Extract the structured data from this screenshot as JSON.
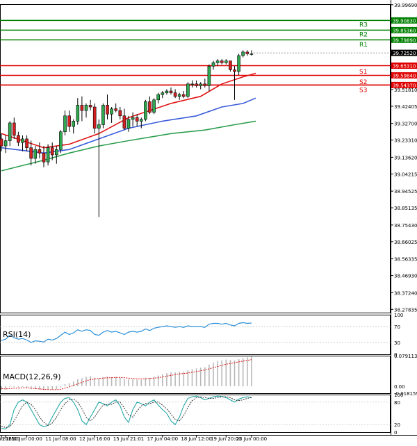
{
  "chart_data": {
    "type": "candlestick",
    "main": {
      "ylim": [
        38.26,
        40.0
      ],
      "price_ticks": [
        "39.99690",
        "39.90830",
        "39.85360",
        "39.79890",
        "39.72520",
        "39.65310",
        "39.59840",
        "39.54370",
        "39.51810",
        "39.42405",
        "39.32700",
        "39.23310",
        "39.13620",
        "39.04215",
        "38.94525",
        "38.85135",
        "38.75430",
        "38.66025",
        "38.56335",
        "38.46930",
        "38.37240",
        "38.27835"
      ],
      "levels": [
        {
          "name": "R3",
          "value": 39.9083,
          "color": "#008000"
        },
        {
          "name": "R2",
          "value": 39.8536,
          "color": "#008000"
        },
        {
          "name": "R1",
          "value": 39.7989,
          "color": "#008000"
        },
        {
          "name": "",
          "value": 39.6531,
          "color": "#e00000"
        },
        {
          "name": "S1",
          "value": 39.5984,
          "color": "#e00000"
        },
        {
          "name": "S2",
          "value": 39.5437,
          "color": "#e00000"
        },
        {
          "name": "S3",
          "value": 39.5437,
          "color": "#e00000"
        }
      ],
      "current_price": "39.72520",
      "candles": [
        [
          39.24,
          39.27,
          39.17,
          39.2
        ],
        [
          39.2,
          39.26,
          39.16,
          39.23
        ],
        [
          39.23,
          39.34,
          39.2,
          39.33
        ],
        [
          39.33,
          39.36,
          39.24,
          39.26
        ],
        [
          39.26,
          39.28,
          39.2,
          39.22
        ],
        [
          39.22,
          39.26,
          39.17,
          39.24
        ],
        [
          39.24,
          39.26,
          39.17,
          39.19
        ],
        [
          39.19,
          39.23,
          39.09,
          39.13
        ],
        [
          39.13,
          39.2,
          39.1,
          39.18
        ],
        [
          39.18,
          39.22,
          39.13,
          39.16
        ],
        [
          39.16,
          39.2,
          39.08,
          39.11
        ],
        [
          39.11,
          39.21,
          39.09,
          39.19
        ],
        [
          39.19,
          39.22,
          39.12,
          39.15
        ],
        [
          39.15,
          39.2,
          39.1,
          39.18
        ],
        [
          39.18,
          39.29,
          39.16,
          39.28
        ],
        [
          39.28,
          39.4,
          39.26,
          39.37
        ],
        [
          39.37,
          39.4,
          39.28,
          39.31
        ],
        [
          39.31,
          39.35,
          39.27,
          39.34
        ],
        [
          39.34,
          39.47,
          39.32,
          39.43
        ],
        [
          39.43,
          39.48,
          39.34,
          39.4
        ],
        [
          39.4,
          39.44,
          39.36,
          39.43
        ],
        [
          39.43,
          39.46,
          39.4,
          39.42
        ],
        [
          39.42,
          39.44,
          39.27,
          39.3
        ],
        [
          39.3,
          39.35,
          38.8,
          39.32
        ],
        [
          39.32,
          39.44,
          39.3,
          39.43
        ],
        [
          39.43,
          39.49,
          39.35,
          39.38
        ],
        [
          39.38,
          39.42,
          39.33,
          39.41
        ],
        [
          39.41,
          39.44,
          39.39,
          39.4
        ],
        [
          39.4,
          39.42,
          39.35,
          39.37
        ],
        [
          39.37,
          39.41,
          39.29,
          39.3
        ],
        [
          39.3,
          39.37,
          39.28,
          39.35
        ],
        [
          39.35,
          39.39,
          39.31,
          39.36
        ],
        [
          39.36,
          39.38,
          39.31,
          39.34
        ],
        [
          39.34,
          39.36,
          39.3,
          39.35
        ],
        [
          39.35,
          39.46,
          39.34,
          39.45
        ],
        [
          39.45,
          39.48,
          39.38,
          39.39
        ],
        [
          39.39,
          39.47,
          39.38,
          39.46
        ],
        [
          39.46,
          39.5,
          39.44,
          39.49
        ],
        [
          39.49,
          39.51,
          39.47,
          39.5
        ],
        [
          39.5,
          39.52,
          39.49,
          39.51
        ],
        [
          39.51,
          39.53,
          39.49,
          39.5
        ],
        [
          39.5,
          39.52,
          39.47,
          39.48
        ],
        [
          39.48,
          39.5,
          39.46,
          39.49
        ],
        [
          39.49,
          39.51,
          39.47,
          39.48
        ],
        [
          39.48,
          39.56,
          39.47,
          39.55
        ],
        [
          39.55,
          39.57,
          39.53,
          39.55
        ],
        [
          39.55,
          39.57,
          39.53,
          39.54
        ],
        [
          39.54,
          39.56,
          39.52,
          39.55
        ],
        [
          39.55,
          39.58,
          39.53,
          39.54
        ],
        [
          39.54,
          39.66,
          39.51,
          39.65
        ],
        [
          39.65,
          39.68,
          39.63,
          39.67
        ],
        [
          39.67,
          39.69,
          39.65,
          39.68
        ],
        [
          39.68,
          39.69,
          39.66,
          39.67
        ],
        [
          39.67,
          39.69,
          39.66,
          39.68
        ],
        [
          39.68,
          39.68,
          39.62,
          39.63
        ],
        [
          39.63,
          39.65,
          39.46,
          39.62
        ],
        [
          39.62,
          39.72,
          39.6,
          39.71
        ],
        [
          39.71,
          39.74,
          39.7,
          39.73
        ],
        [
          39.73,
          39.74,
          39.71,
          39.72
        ],
        [
          39.72,
          39.74,
          39.71,
          39.72
        ]
      ],
      "ma_red": [
        [
          0,
          39.27
        ],
        [
          10,
          39.19
        ],
        [
          16,
          39.21
        ],
        [
          23,
          39.27
        ],
        [
          30,
          39.36
        ],
        [
          40,
          39.44
        ],
        [
          47,
          39.48
        ],
        [
          52,
          39.55
        ],
        [
          57,
          39.59
        ],
        [
          60,
          39.61
        ]
      ],
      "ma_blue": [
        [
          0,
          39.19
        ],
        [
          10,
          39.16
        ],
        [
          16,
          39.18
        ],
        [
          23,
          39.24
        ],
        [
          30,
          39.3
        ],
        [
          38,
          39.34
        ],
        [
          46,
          39.37
        ],
        [
          52,
          39.42
        ],
        [
          57,
          39.44
        ],
        [
          60,
          39.47
        ]
      ],
      "ma_green": [
        [
          0,
          39.06
        ],
        [
          10,
          39.12
        ],
        [
          16,
          39.16
        ],
        [
          23,
          39.2
        ],
        [
          30,
          39.23
        ],
        [
          40,
          39.27
        ],
        [
          48,
          39.29
        ],
        [
          55,
          39.32
        ],
        [
          60,
          39.34
        ]
      ]
    },
    "x_ticks": [
      {
        "label": "9 Jun 2025",
        "i": 0
      },
      {
        "label": "9 Jun 16:00",
        "i": 1
      },
      {
        "label": "10 Jun 00:00",
        "i": 6
      },
      {
        "label": "11 Jun 08:00",
        "i": 14
      },
      {
        "label": "12 Jun 16:00",
        "i": 22
      },
      {
        "label": "15 Jun 21:01",
        "i": 30
      },
      {
        "label": "17 Jun 04:00",
        "i": 38
      },
      {
        "label": "18 Jun 12:00",
        "i": 46
      },
      {
        "label": "19 Jun 20:00",
        "i": 53
      },
      {
        "label": "23 Jun 00:00",
        "i": 59
      }
    ],
    "rsi": {
      "label": "RSI(14)",
      "ylim": [
        0,
        100
      ],
      "ticks": [
        "100",
        "70",
        "30",
        "0"
      ],
      "values": [
        35,
        38,
        48,
        42,
        38,
        40,
        36,
        30,
        34,
        33,
        31,
        38,
        36,
        40,
        48,
        56,
        50,
        54,
        62,
        58,
        62,
        60,
        50,
        48,
        56,
        60,
        56,
        58,
        54,
        50,
        56,
        58,
        56,
        58,
        64,
        60,
        66,
        68,
        70,
        72,
        70,
        68,
        70,
        68,
        72,
        70,
        70,
        70,
        68,
        76,
        78,
        78,
        76,
        78,
        74,
        72,
        78,
        80,
        78,
        79
      ]
    },
    "macd": {
      "label": "MACD(12,26,9)",
      "ylim": [
        -0.018159,
        0.079113
      ],
      "ticks": [
        "0.079113",
        "0.00",
        "-0.018159"
      ],
      "hist": [
        -0.01,
        -0.008,
        -0.002,
        -0.002,
        -0.003,
        -0.002,
        -0.004,
        -0.008,
        -0.008,
        -0.009,
        -0.011,
        -0.01,
        -0.009,
        -0.008,
        -0.003,
        0.005,
        0.008,
        0.012,
        0.018,
        0.021,
        0.024,
        0.026,
        0.022,
        0.02,
        0.024,
        0.025,
        0.024,
        0.024,
        0.022,
        0.018,
        0.018,
        0.018,
        0.017,
        0.017,
        0.022,
        0.022,
        0.025,
        0.028,
        0.031,
        0.034,
        0.036,
        0.036,
        0.037,
        0.037,
        0.041,
        0.044,
        0.046,
        0.048,
        0.049,
        0.056,
        0.061,
        0.065,
        0.067,
        0.069,
        0.068,
        0.067,
        0.07,
        0.073,
        0.075,
        0.077
      ],
      "signal": [
        -0.006,
        -0.007,
        -0.006,
        -0.005,
        -0.005,
        -0.004,
        -0.004,
        -0.005,
        -0.006,
        -0.007,
        -0.008,
        -0.009,
        -0.009,
        -0.009,
        -0.008,
        -0.005,
        -0.002,
        0.002,
        0.006,
        0.01,
        0.014,
        0.017,
        0.019,
        0.02,
        0.021,
        0.022,
        0.022,
        0.023,
        0.023,
        0.022,
        0.021,
        0.02,
        0.019,
        0.019,
        0.019,
        0.02,
        0.021,
        0.022,
        0.024,
        0.026,
        0.028,
        0.03,
        0.032,
        0.033,
        0.034,
        0.036,
        0.038,
        0.04,
        0.042,
        0.045,
        0.048,
        0.051,
        0.054,
        0.057,
        0.059,
        0.061,
        0.063,
        0.065,
        0.067,
        0.069
      ]
    },
    "stoch": {
      "ylim": [
        0,
        100
      ],
      "ticks": [
        "100",
        "80",
        "20",
        "0"
      ],
      "k": [
        10,
        8,
        20,
        60,
        80,
        86,
        80,
        60,
        40,
        20,
        14,
        18,
        40,
        60,
        80,
        90,
        92,
        80,
        60,
        30,
        20,
        40,
        60,
        80,
        76,
        70,
        80,
        86,
        70,
        40,
        26,
        60,
        80,
        76,
        70,
        80,
        86,
        72,
        60,
        50,
        30,
        20,
        40,
        70,
        90,
        94,
        96,
        92,
        86,
        90,
        94,
        96,
        95,
        92,
        86,
        80,
        88,
        92,
        94,
        92
      ],
      "d": [
        16,
        12,
        14,
        30,
        50,
        70,
        80,
        74,
        60,
        40,
        26,
        18,
        24,
        40,
        60,
        76,
        86,
        88,
        80,
        62,
        40,
        30,
        40,
        58,
        72,
        74,
        74,
        80,
        80,
        64,
        46,
        40,
        56,
        70,
        76,
        76,
        80,
        80,
        72,
        62,
        48,
        34,
        30,
        44,
        66,
        84,
        92,
        94,
        92,
        90,
        90,
        92,
        94,
        94,
        92,
        86,
        84,
        86,
        90,
        92
      ]
    }
  }
}
